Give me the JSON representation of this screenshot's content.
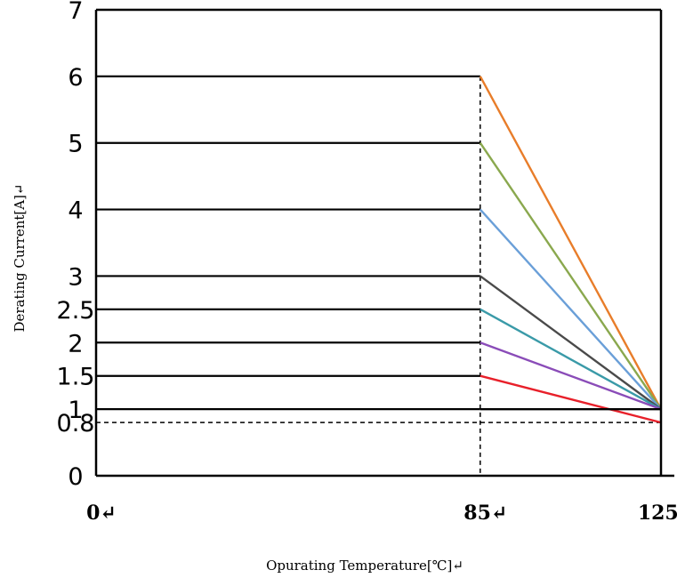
{
  "chart_data": {
    "type": "line",
    "title": "",
    "xlabel": "Opurating Temperature[℃]↵",
    "ylabel": "Derating Current[A]↵",
    "xlim": [
      0,
      125
    ],
    "ylim": [
      0,
      7
    ],
    "y_ticks": [
      {
        "value": 0,
        "label": "0"
      },
      {
        "value": 0.8,
        "label": "0.8"
      },
      {
        "value": 1,
        "label": "1"
      },
      {
        "value": 1.5,
        "label": "1.5"
      },
      {
        "value": 2,
        "label": "2"
      },
      {
        "value": 2.5,
        "label": "2.5"
      },
      {
        "value": 3,
        "label": "3"
      },
      {
        "value": 4,
        "label": "4"
      },
      {
        "value": 5,
        "label": "5"
      },
      {
        "value": 6,
        "label": "6"
      },
      {
        "value": 7,
        "label": "7"
      }
    ],
    "x_ticks": [
      {
        "value": 0,
        "label": "0↵"
      },
      {
        "value": 85,
        "label": "85↵"
      },
      {
        "value": 125,
        "label": "125↵"
      }
    ],
    "reference_lines": [
      {
        "axis": "x",
        "value": 85,
        "style": "dashed"
      },
      {
        "axis": "y",
        "value": 0.8,
        "style": "dashed"
      }
    ],
    "grid": false,
    "legend": "none",
    "series": [
      {
        "color": "#e87d2a",
        "points": [
          [
            0,
            6
          ],
          [
            85,
            6
          ],
          [
            125,
            1
          ]
        ]
      },
      {
        "color": "#8aa84e",
        "points": [
          [
            0,
            5
          ],
          [
            85,
            5
          ],
          [
            125,
            1
          ]
        ]
      },
      {
        "color": "#6a9fd8",
        "points": [
          [
            0,
            4
          ],
          [
            85,
            4
          ],
          [
            125,
            1
          ]
        ]
      },
      {
        "color": "#4a4a4a",
        "points": [
          [
            0,
            3
          ],
          [
            85,
            3
          ],
          [
            125,
            1
          ]
        ]
      },
      {
        "color": "#3a9aa8",
        "points": [
          [
            0,
            2.5
          ],
          [
            85,
            2.5
          ],
          [
            125,
            1
          ]
        ]
      },
      {
        "color": "#8a4cb8",
        "points": [
          [
            0,
            2
          ],
          [
            85,
            2
          ],
          [
            125,
            1
          ]
        ]
      },
      {
        "color": "#e8202a",
        "points": [
          [
            0,
            1.5
          ],
          [
            85,
            1.5
          ],
          [
            125,
            0.8
          ]
        ]
      },
      {
        "color": "#000000",
        "points": [
          [
            0,
            1
          ],
          [
            85,
            1
          ],
          [
            125,
            1
          ]
        ]
      }
    ]
  }
}
